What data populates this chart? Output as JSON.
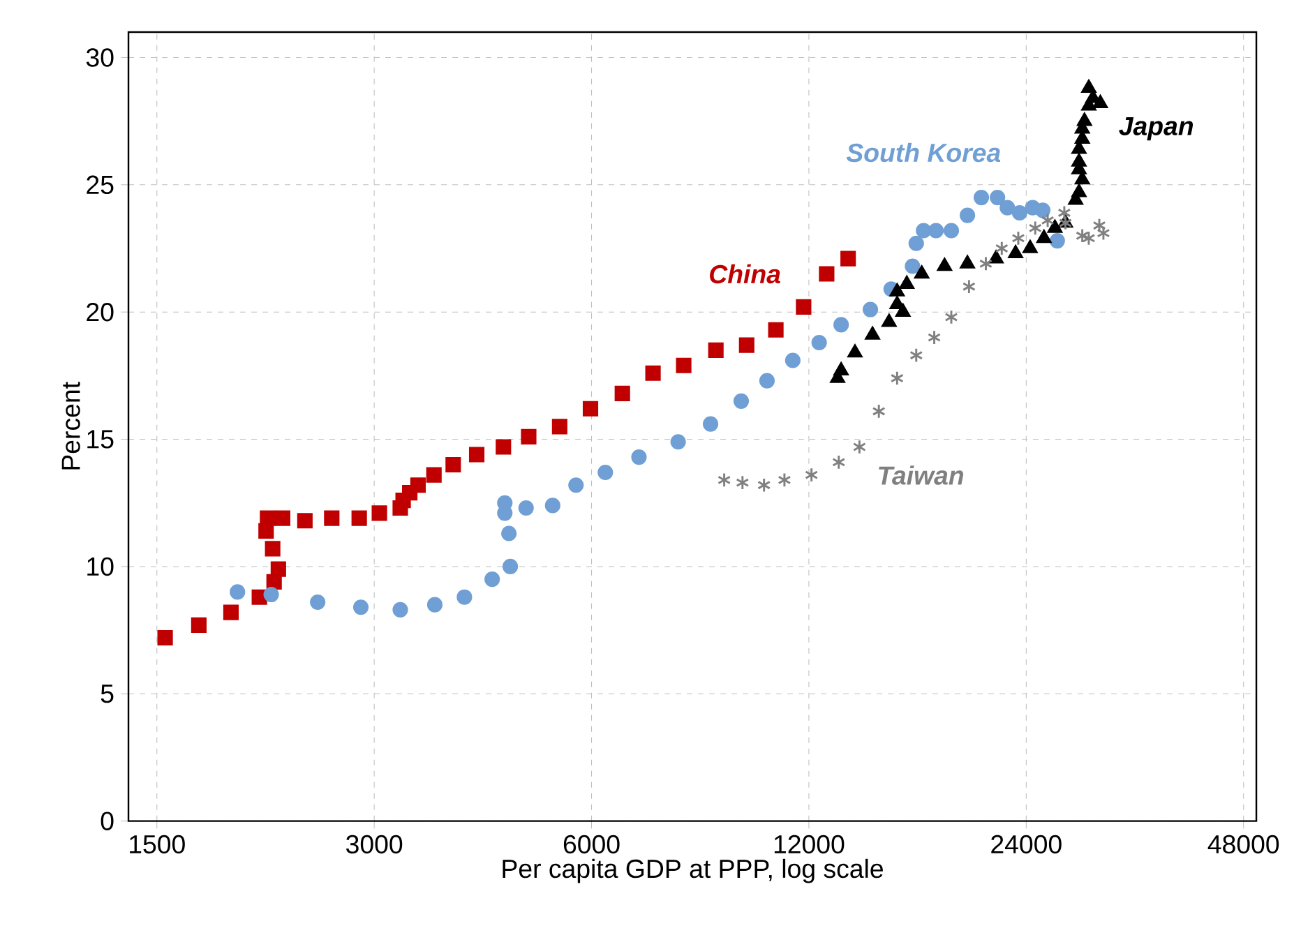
{
  "chart_data": {
    "type": "scatter",
    "xlabel": "Per capita GDP at PPP, log scale",
    "ylabel": "Percent",
    "log": "x",
    "grid": true,
    "xlim": [
      1370,
      50000
    ],
    "xticks": [
      1500,
      3000,
      6000,
      12000,
      24000,
      48000
    ],
    "ylim": [
      0,
      31
    ],
    "yticks": [
      0,
      5,
      10,
      15,
      20,
      25,
      30
    ],
    "series": [
      {
        "name": "China",
        "color": "#c00000",
        "marker": "square",
        "x": [
          1540,
          1715,
          1900,
          2080,
          2180,
          2210,
          2170,
          2125,
          2135,
          2240,
          2405,
          2620,
          2860,
          3050,
          3260,
          3290,
          3360,
          3450,
          3630,
          3860,
          4160,
          4530,
          4910,
          5420,
          5980,
          6620,
          7300,
          8050,
          8920,
          9840,
          10800,
          11800,
          12700,
          13600
        ],
        "values": [
          7.2,
          7.7,
          8.2,
          8.8,
          9.4,
          9.9,
          10.7,
          11.4,
          11.9,
          11.9,
          11.8,
          11.9,
          11.9,
          12.1,
          12.3,
          12.6,
          12.9,
          13.2,
          13.6,
          14.0,
          14.4,
          14.7,
          15.1,
          15.5,
          16.2,
          16.8,
          17.6,
          17.9,
          18.5,
          18.7,
          19.3,
          20.2,
          21.5,
          22.1
        ]
      },
      {
        "name": "South Korea",
        "color": "#6f9fd4",
        "marker": "circle",
        "x": [
          1940,
          2160,
          2505,
          2875,
          3260,
          3640,
          4000,
          4370,
          4630,
          4610,
          4550,
          4550,
          4870,
          5300,
          5710,
          6270,
          6980,
          7910,
          8770,
          9670,
          10500,
          11400,
          12400,
          13300,
          14600,
          15600,
          16700,
          16900,
          17300,
          18000,
          18900,
          19900,
          20800,
          21900,
          22600,
          23500,
          24500,
          25300,
          26500
        ],
        "values": [
          9.0,
          8.9,
          8.6,
          8.4,
          8.3,
          8.5,
          8.8,
          9.5,
          10.0,
          11.3,
          12.1,
          12.5,
          12.3,
          12.4,
          13.2,
          13.7,
          14.3,
          14.9,
          15.6,
          16.5,
          17.3,
          18.1,
          18.8,
          19.5,
          20.1,
          20.9,
          21.8,
          22.7,
          23.2,
          23.2,
          23.2,
          23.8,
          24.5,
          24.5,
          24.1,
          23.9,
          24.1,
          24.0,
          22.8
        ]
      },
      {
        "name": "Japan",
        "color": "#000000",
        "marker": "triangle",
        "x": [
          13150,
          13300,
          13900,
          14700,
          15500,
          16200,
          15900,
          15900,
          16400,
          17200,
          18500,
          19900,
          21800,
          23200,
          24300,
          25400,
          26300,
          27200,
          28100,
          28400,
          28700,
          28400,
          28400,
          28400,
          28700,
          28700,
          28900,
          29300,
          29700,
          29300,
          30400
        ],
        "values": [
          17.4,
          17.7,
          18.4,
          19.1,
          19.6,
          20.0,
          20.3,
          20.8,
          21.1,
          21.5,
          21.8,
          21.9,
          22.1,
          22.3,
          22.5,
          22.9,
          23.3,
          23.5,
          24.4,
          24.7,
          25.2,
          25.6,
          25.9,
          26.4,
          26.8,
          27.2,
          27.5,
          28.1,
          28.4,
          28.8,
          28.2
        ]
      },
      {
        "name": "Taiwan",
        "color": "#808080",
        "marker": "cross",
        "x": [
          9160,
          9710,
          10400,
          11100,
          12100,
          13200,
          14100,
          15000,
          15900,
          16900,
          17900,
          18900,
          20000,
          21100,
          22200,
          23400,
          24700,
          25700,
          27100,
          27200,
          28700,
          30300,
          30700,
          29300
        ],
        "values": [
          13.4,
          13.3,
          13.2,
          13.4,
          13.6,
          14.1,
          14.7,
          16.1,
          17.4,
          18.3,
          19.0,
          19.8,
          21.0,
          21.9,
          22.5,
          22.9,
          23.3,
          23.6,
          23.9,
          23.5,
          23.0,
          23.4,
          23.1,
          22.9
        ]
      }
    ]
  }
}
